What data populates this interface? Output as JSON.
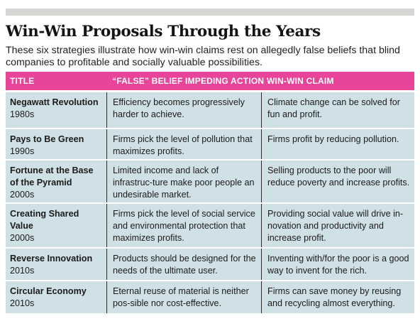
{
  "header": {
    "title": "Win-Win Proposals Through the Years",
    "subtitle": "These six strategies illustrate how win-win claims rest on allegedly false beliefs that blind companies to profitable and socially valuable possibilities."
  },
  "table": {
    "columns": [
      "TITLE",
      "“FALSE” BELIEF IMPEDING ACTION",
      "WIN-WIN CLAIM"
    ],
    "rows": [
      {
        "name": "Negawatt Revolution",
        "decade": "1980s",
        "belief": "Efficiency becomes progressively harder to achieve.",
        "claim": "Climate change can be solved for fun and profit."
      },
      {
        "name": "Pays to Be Green",
        "decade": "1990s",
        "belief": "Firms pick the level of pollution that maximizes profits.",
        "claim": "Firms profit by reducing pollution."
      },
      {
        "name": "Fortune at the Base of the Pyramid",
        "decade": "2000s",
        "belief": "Limited income and lack of infrastruc-ture make poor people an undesirable market.",
        "claim": "Selling products to the poor will reduce poverty and increase profits."
      },
      {
        "name": "Creating Shared Value",
        "decade": "2000s",
        "belief": "Firms pick the level of social service and environmental protection that maximizes profits.",
        "claim": "Providing social value will drive in-novation and productivity and increase profit."
      },
      {
        "name": "Reverse Innovation",
        "decade": "2010s",
        "belief": "Products should be designed for the needs of the ultimate user.",
        "claim": "Inventing with/for the poor is a good way to invent for the rich."
      },
      {
        "name": "Circular Economy",
        "decade": "2010s",
        "belief": "Eternal reuse of material is neither pos-sible nor cost-effective.",
        "claim": "Firms can save money by reusing and recycling almost everything."
      }
    ]
  },
  "colors": {
    "header_bg": "#e8449a",
    "row_bg": "#cfe1e6",
    "top_rule": "#d6d6d3"
  }
}
